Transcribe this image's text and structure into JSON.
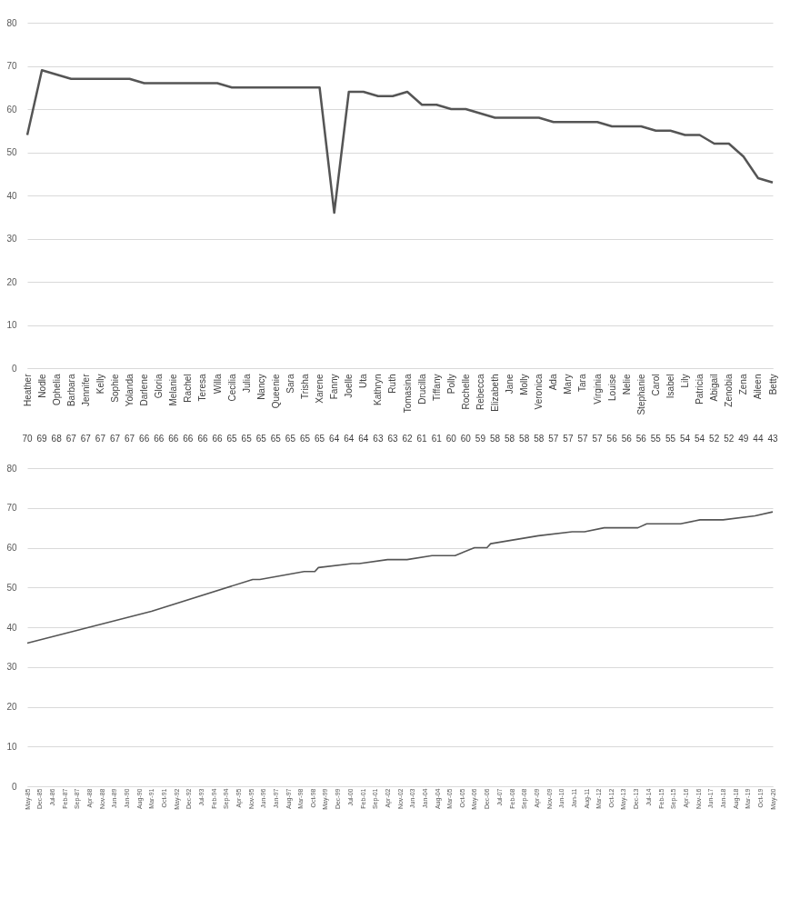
{
  "chart_data": [
    {
      "type": "line",
      "categories": [
        "Heather",
        "Nodle",
        "Ophelia",
        "Barbara",
        "Jennifer",
        "Kelly",
        "Sophie",
        "Yolanda",
        "Darlene",
        "Gloria",
        "Melanie",
        "Rachel",
        "Teresa",
        "Willa",
        "Cecilia",
        "Julia",
        "Nancy",
        "Queenie",
        "Sara",
        "Trisha",
        "Xarene",
        "Fanny",
        "Joelle",
        "Uta",
        "Kathryn",
        "Ruth",
        "Tomasina",
        "Drucilla",
        "Tiffany",
        "Polly",
        "Rochelle",
        "Rebecca",
        "Elizabeth",
        "Jane",
        "Molly",
        "Veronica",
        "Ada",
        "Mary",
        "Tara",
        "Virginia",
        "Louise",
        "Nelie",
        "Stephanie",
        "Carol",
        "Isabel",
        "Lily",
        "Patricia",
        "Abigail",
        "Zenobia",
        "Zena",
        "Aileen",
        "Betty"
      ],
      "series": [
        {
          "color": "#555555",
          "values": [
            54,
            69,
            68,
            67,
            67,
            67,
            67,
            67,
            66,
            66,
            66,
            66,
            66,
            66,
            65,
            65,
            65,
            65,
            65,
            65,
            65,
            36,
            64,
            64,
            63,
            63,
            64,
            61,
            61,
            60,
            60,
            59,
            58,
            58,
            58,
            58,
            57,
            57,
            57,
            57,
            56,
            56,
            56,
            55,
            55,
            54,
            54,
            52,
            52,
            49,
            44,
            43
          ]
        }
      ],
      "annotations": [
        "70",
        "69",
        "68",
        "67",
        "67",
        "67",
        "67",
        "67",
        "66",
        "66",
        "66",
        "66",
        "66",
        "66",
        "65",
        "65",
        "65",
        "65",
        "65",
        "65",
        "65",
        "64",
        "64",
        "64",
        "63",
        "63",
        "62",
        "61",
        "61",
        "60",
        "60",
        "59",
        "58",
        "58",
        "58",
        "58",
        "57",
        "57",
        "57",
        "57",
        "56",
        "56",
        "56",
        "55",
        "55",
        "54",
        "54",
        "52",
        "52",
        "49",
        "44",
        "43"
      ],
      "ylim": [
        0,
        80
      ],
      "yticks": [
        0,
        10,
        20,
        30,
        40,
        50,
        60,
        70,
        80
      ],
      "grid": "y"
    },
    {
      "type": "line",
      "x": [
        "1985-05",
        "1991-03",
        "1995-12",
        "1996-04",
        "1998-05",
        "1998-11",
        "1999-01",
        "2000-08",
        "2000-12",
        "2002-04",
        "2003-03",
        "2004-05",
        "2005-06",
        "2006-05",
        "2006-12",
        "2007-02",
        "2009-05",
        "2010-12",
        "2011-07",
        "2012-06",
        "2014-01",
        "2014-06",
        "2016-01",
        "2016-12",
        "2018-01",
        "2019-07",
        "2020-05"
      ],
      "series": [
        {
          "color": "#555555",
          "values": [
            36,
            44,
            52,
            52,
            54,
            54,
            55,
            56,
            56,
            57,
            57,
            58,
            58,
            60,
            60,
            61,
            63,
            64,
            64,
            65,
            65,
            66,
            66,
            67,
            67,
            68,
            69
          ]
        }
      ],
      "xlim": [
        "1985-05",
        "2020-05"
      ],
      "xticks": [
        {
          "value": "1985-05",
          "label": "May-85"
        },
        {
          "value": "1985-12",
          "label": "Dec-85"
        },
        {
          "value": "1986-07",
          "label": "Jul-86"
        },
        {
          "value": "1987-02",
          "label": "Feb-87"
        },
        {
          "value": "1987-09",
          "label": "Sep-87"
        },
        {
          "value": "1988-04",
          "label": "Apr-88"
        },
        {
          "value": "1988-11",
          "label": "Nov-88"
        },
        {
          "value": "1989-06",
          "label": "Jun-89"
        },
        {
          "value": "1990-01",
          "label": "Jan-90"
        },
        {
          "value": "1990-08",
          "label": "Aug-90"
        },
        {
          "value": "1991-03",
          "label": "Mar-91"
        },
        {
          "value": "1991-10",
          "label": "Oct-91"
        },
        {
          "value": "1992-05",
          "label": "May-92"
        },
        {
          "value": "1992-12",
          "label": "Dec-92"
        },
        {
          "value": "1993-07",
          "label": "Jul-93"
        },
        {
          "value": "1994-02",
          "label": "Feb-94"
        },
        {
          "value": "1994-09",
          "label": "Sep-94"
        },
        {
          "value": "1995-04",
          "label": "Apr-95"
        },
        {
          "value": "1995-11",
          "label": "Nov-95"
        },
        {
          "value": "1996-06",
          "label": "Jun-96"
        },
        {
          "value": "1997-01",
          "label": "Jan-97"
        },
        {
          "value": "1997-08",
          "label": "Aug-97"
        },
        {
          "value": "1998-03",
          "label": "Mar-98"
        },
        {
          "value": "1998-10",
          "label": "Oct-98"
        },
        {
          "value": "1999-05",
          "label": "May-99"
        },
        {
          "value": "1999-12",
          "label": "Dec-99"
        },
        {
          "value": "2000-07",
          "label": "Jul-00"
        },
        {
          "value": "2001-02",
          "label": "Feb-01"
        },
        {
          "value": "2001-09",
          "label": "Sep-01"
        },
        {
          "value": "2002-04",
          "label": "Apr-02"
        },
        {
          "value": "2002-11",
          "label": "Nov-02"
        },
        {
          "value": "2003-06",
          "label": "Jun-03"
        },
        {
          "value": "2004-01",
          "label": "Jan-04"
        },
        {
          "value": "2004-08",
          "label": "Aug-04"
        },
        {
          "value": "2005-03",
          "label": "Mar-05"
        },
        {
          "value": "2005-10",
          "label": "Oct-05"
        },
        {
          "value": "2006-05",
          "label": "May-06"
        },
        {
          "value": "2006-12",
          "label": "Dec-06"
        },
        {
          "value": "2007-07",
          "label": "Jul-07"
        },
        {
          "value": "2008-02",
          "label": "Feb-08"
        },
        {
          "value": "2008-09",
          "label": "Sep-08"
        },
        {
          "value": "2009-04",
          "label": "Apr-09"
        },
        {
          "value": "2009-11",
          "label": "Nov-09"
        },
        {
          "value": "2010-06",
          "label": "Jun-10"
        },
        {
          "value": "2011-01",
          "label": "Jan-11"
        },
        {
          "value": "2011-08",
          "label": "Aug-11"
        },
        {
          "value": "2012-03",
          "label": "Mar-12"
        },
        {
          "value": "2012-10",
          "label": "Oct-12"
        },
        {
          "value": "2013-05",
          "label": "May-13"
        },
        {
          "value": "2013-12",
          "label": "Dec-13"
        },
        {
          "value": "2014-07",
          "label": "Jul-14"
        },
        {
          "value": "2015-02",
          "label": "Feb-15"
        },
        {
          "value": "2015-09",
          "label": "Sep-15"
        },
        {
          "value": "2016-04",
          "label": "Apr-16"
        },
        {
          "value": "2016-11",
          "label": "Nov-16"
        },
        {
          "value": "2017-06",
          "label": "Jun-17"
        },
        {
          "value": "2018-01",
          "label": "Jan-18"
        },
        {
          "value": "2018-08",
          "label": "Aug-18"
        },
        {
          "value": "2019-03",
          "label": "Mar-19"
        },
        {
          "value": "2019-10",
          "label": "Oct-19"
        },
        {
          "value": "2020-05",
          "label": "May-20"
        }
      ],
      "ylim": [
        0,
        80
      ],
      "yticks": [
        0,
        10,
        20,
        30,
        40,
        50,
        60,
        70,
        80
      ],
      "grid": "y"
    }
  ]
}
